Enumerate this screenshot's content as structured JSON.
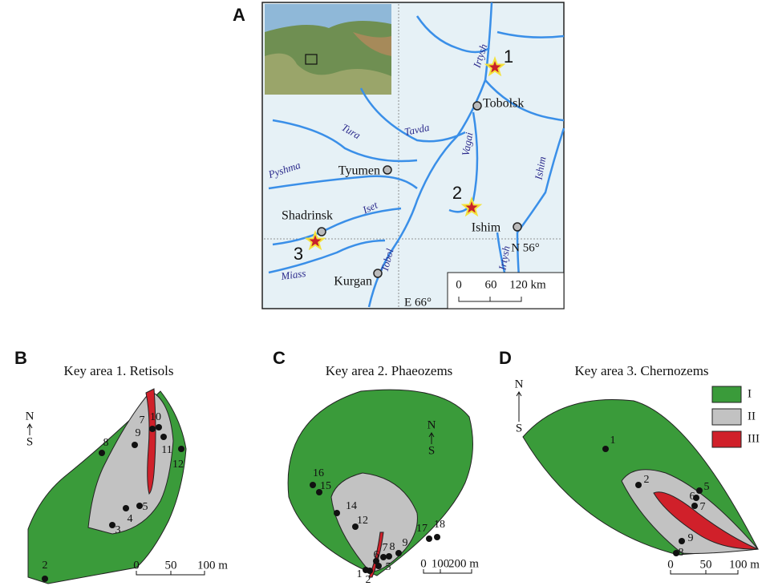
{
  "map": {
    "label": "A",
    "rivers": [
      "Irtysh",
      "Tura",
      "Tavda",
      "Pyshma",
      "Iset",
      "Tobol",
      "Miass",
      "Vagai",
      "Ishim",
      "Irtysh"
    ],
    "cities": [
      "Tobolsk",
      "Tyumen",
      "Shadrinsk",
      "Ishim",
      "Kurgan"
    ],
    "sites": [
      "1",
      "2",
      "3"
    ],
    "gridlines": [
      "N 56°",
      "E 66°"
    ],
    "scale_bar": [
      "0",
      "60",
      "120 km"
    ]
  },
  "key_areas": [
    {
      "label": "B",
      "title": "Key area 1. Retisols",
      "north": "N",
      "south": "S",
      "points": [
        "8",
        "9",
        "7",
        "10",
        "11",
        "12",
        "5",
        "4",
        "3",
        "2"
      ],
      "scale_bar": [
        "0",
        "50",
        "100 m"
      ]
    },
    {
      "label": "C",
      "title": "Key area 2. Phaeozems",
      "north": "N",
      "south": "S",
      "points": [
        "16",
        "15",
        "14",
        "12",
        "17",
        "18",
        "9",
        "8",
        "7",
        "6",
        "5",
        "1",
        "2"
      ],
      "scale_bar": [
        "0",
        "100",
        "200 m"
      ]
    },
    {
      "label": "D",
      "title": "Key area 3. Chernozems",
      "north": "N",
      "south": "S",
      "points": [
        "1",
        "2",
        "5",
        "6",
        "7",
        "9",
        "8"
      ],
      "scale_bar": [
        "0",
        "50",
        "100 m"
      ]
    }
  ],
  "legend": [
    "I",
    "II",
    "III"
  ]
}
